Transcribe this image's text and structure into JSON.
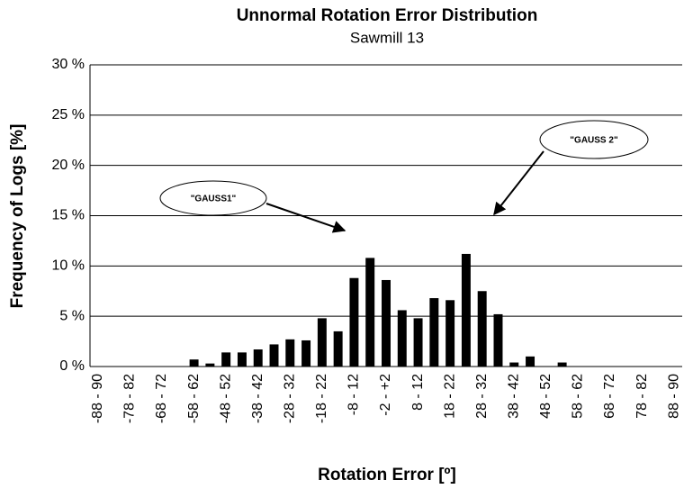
{
  "chart_data": {
    "type": "bar",
    "title": "Unnormal Rotation Error Distribution",
    "subtitle": "Sawmill 13",
    "x_label": "Rotation Error [º]",
    "y_label": "Frequency of Logs [%]",
    "categories": [
      "-88 - 90",
      null,
      "-78 - 82",
      null,
      "-68 - 72",
      null,
      "-58 - 62",
      null,
      "-48 - 52",
      null,
      "-38 - 42",
      null,
      "-28 - 32",
      null,
      "-18 - 22",
      null,
      "-8 - 12",
      null,
      "-2 - +2",
      null,
      "8 - 12",
      null,
      "18 - 22",
      null,
      "28 - 32",
      null,
      "38 - 42",
      null,
      "48 - 52",
      null,
      "58 - 62",
      null,
      "68 - 72",
      null,
      "78 - 82",
      null,
      "88 - 90"
    ],
    "values": [
      0,
      0,
      0,
      0,
      0,
      0,
      0.7,
      0.3,
      1.4,
      1.4,
      1.7,
      2.2,
      2.7,
      2.6,
      4.8,
      3.5,
      8.8,
      10.8,
      8.6,
      5.6,
      4.8,
      6.8,
      6.6,
      11.2,
      7.5,
      5.2,
      0.4,
      1.0,
      0,
      0.4,
      0,
      0,
      0,
      0,
      0,
      0,
      0
    ],
    "color": "#000000",
    "ylim": [
      0,
      30
    ],
    "yticks": [
      {
        "value": 0,
        "label": "0 %"
      },
      {
        "value": 5,
        "label": "5 %"
      },
      {
        "value": 10,
        "label": "10 %"
      },
      {
        "value": 15,
        "label": "15 %"
      },
      {
        "value": 20,
        "label": "20 %"
      },
      {
        "value": 25,
        "label": "25 %"
      },
      {
        "value": 30,
        "label": "30 %"
      }
    ],
    "grid": true,
    "annotations": [
      "\"GAUSS1\"",
      "\"GAUSS 2\""
    ]
  }
}
